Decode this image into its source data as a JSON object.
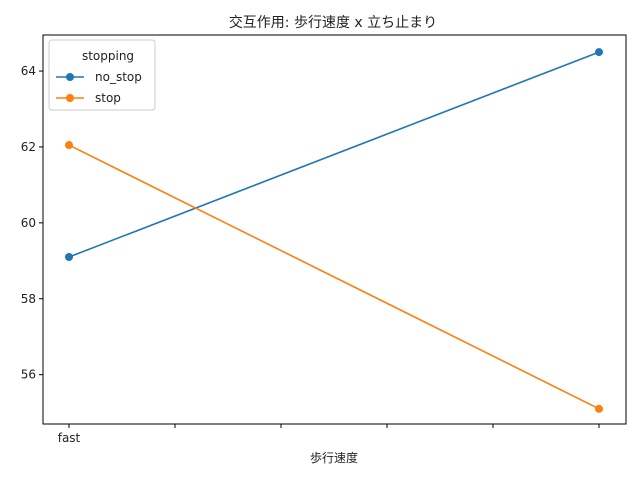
{
  "chart_data": {
    "type": "line",
    "title": "交互作用: 歩行速度 x 立ち止まり",
    "xlabel": "歩行速度",
    "ylabel": "",
    "x_tick_labels": [
      "fast",
      "",
      "",
      "",
      "",
      ""
    ],
    "x": [
      0,
      1
    ],
    "ylim": [
      54.7,
      64.95
    ],
    "yticks": [
      56,
      58,
      60,
      62,
      64
    ],
    "grid": false,
    "legend": {
      "title": "stopping",
      "placement": "top-left"
    },
    "series": [
      {
        "name": "no_stop",
        "color": "#1f77b4",
        "values": [
          59.1,
          64.5
        ]
      },
      {
        "name": "stop",
        "color": "#ff7f0e",
        "values": [
          62.05,
          55.1
        ]
      }
    ]
  }
}
